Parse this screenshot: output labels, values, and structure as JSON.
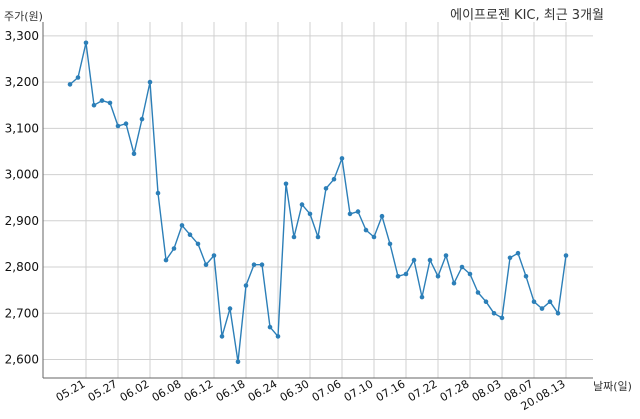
{
  "chart_data": {
    "type": "line",
    "title": "에이프로젠 KIC, 최근 3개월",
    "ylabel": "주가(원)",
    "xlabel": "날짜(일)",
    "ylim": [
      2560,
      3330
    ],
    "yticks": [
      2600,
      2700,
      2800,
      2900,
      3000,
      3100,
      3200,
      3300
    ],
    "ytick_labels": [
      "2,600",
      "2,700",
      "2,800",
      "2,900",
      "3,000",
      "3,100",
      "3,200",
      "3,300"
    ],
    "xtick_labels": [
      "05.21",
      "05.27",
      "06.02",
      "06.08",
      "06.12",
      "06.18",
      "06.24",
      "06.30",
      "07.06",
      "07.10",
      "07.16",
      "07.22",
      "07.28",
      "08.03",
      "08.07",
      "20.08.13"
    ],
    "xtick_indices": [
      2,
      6,
      10,
      14,
      18,
      22,
      26,
      30,
      34,
      38,
      42,
      46,
      50,
      54,
      58,
      62
    ],
    "grid": true,
    "color": "#2c7fb8",
    "series": [
      {
        "x": [
          "05.19",
          "05.20",
          "05.21",
          "05.22",
          "05.25",
          "05.26",
          "05.27",
          "05.28",
          "05.29",
          "06.01",
          "06.02",
          "06.03",
          "06.04",
          "06.05",
          "06.08",
          "06.09",
          "06.10",
          "06.11",
          "06.12",
          "06.15",
          "06.16",
          "06.17",
          "06.18",
          "06.19",
          "06.22",
          "06.23",
          "06.24",
          "06.25",
          "06.26",
          "06.29",
          "06.30",
          "07.01",
          "07.02",
          "07.03",
          "07.06",
          "07.07",
          "07.08",
          "07.09",
          "07.10",
          "07.13",
          "07.14",
          "07.15",
          "07.16",
          "07.17",
          "07.20",
          "07.21",
          "07.22",
          "07.23",
          "07.24",
          "07.27",
          "07.28",
          "07.29",
          "07.30",
          "07.31",
          "08.03",
          "08.04",
          "08.05",
          "08.06",
          "08.07",
          "08.10",
          "08.11",
          "08.12",
          "08.13"
        ],
        "values": [
          3195,
          3210,
          3285,
          3150,
          3160,
          3155,
          3105,
          3110,
          3045,
          3120,
          3200,
          2960,
          2815,
          2840,
          2890,
          2870,
          2850,
          2805,
          2825,
          2650,
          2710,
          2595,
          2760,
          2805,
          2805,
          2670,
          2650,
          2980,
          2865,
          2935,
          2915,
          2865,
          2970,
          2990,
          3035,
          2915,
          2920,
          2880,
          2865,
          2910,
          2850,
          2780,
          2785,
          2815,
          2735,
          2815,
          2780,
          2825,
          2765,
          2800,
          2785,
          2745,
          2725,
          2700,
          2690,
          2820,
          2830,
          2780,
          2725,
          2710,
          2725,
          2700,
          2825
        ]
      }
    ]
  }
}
